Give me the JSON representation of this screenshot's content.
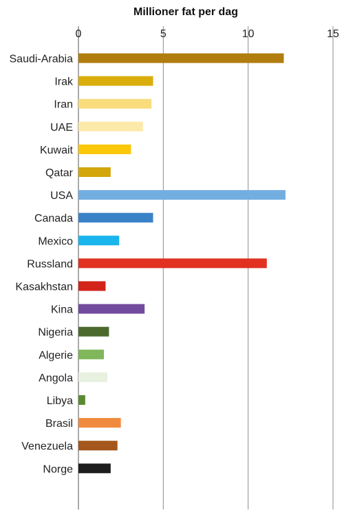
{
  "chart_data": {
    "type": "bar",
    "orientation": "horizontal",
    "title": "Millioner fat per dag",
    "xlabel": "",
    "ylabel": "",
    "xlim": [
      0,
      15
    ],
    "ticks": [
      0,
      5,
      10,
      15
    ],
    "axis_position": "top",
    "grid": true,
    "legend": "none",
    "categories": [
      "Saudi-Arabia",
      "Irak",
      "Iran",
      "UAE",
      "Kuwait",
      "Qatar",
      "USA",
      "Canada",
      "Mexico",
      "Russland",
      "Kasakhstan",
      "Kina",
      "Nigeria",
      "Algerie",
      "Angola",
      "Libya",
      "Brasil",
      "Venezuela",
      "Norge"
    ],
    "values": [
      12.1,
      4.4,
      4.3,
      3.8,
      3.1,
      1.9,
      12.2,
      4.4,
      2.4,
      11.1,
      1.6,
      3.9,
      1.8,
      1.5,
      1.7,
      0.4,
      2.5,
      2.3,
      1.9
    ],
    "colors": [
      "#b07d0e",
      "#d9ad0c",
      "#f9dc7c",
      "#fde9a9",
      "#fbc70b",
      "#d3a60c",
      "#73aee0",
      "#3a82c7",
      "#19b5ec",
      "#e03121",
      "#d22419",
      "#734b9e",
      "#4d6a2e",
      "#80b75a",
      "#e8f0df",
      "#5b8a32",
      "#f08a3e",
      "#a4561c",
      "#1e1e1e"
    ]
  }
}
